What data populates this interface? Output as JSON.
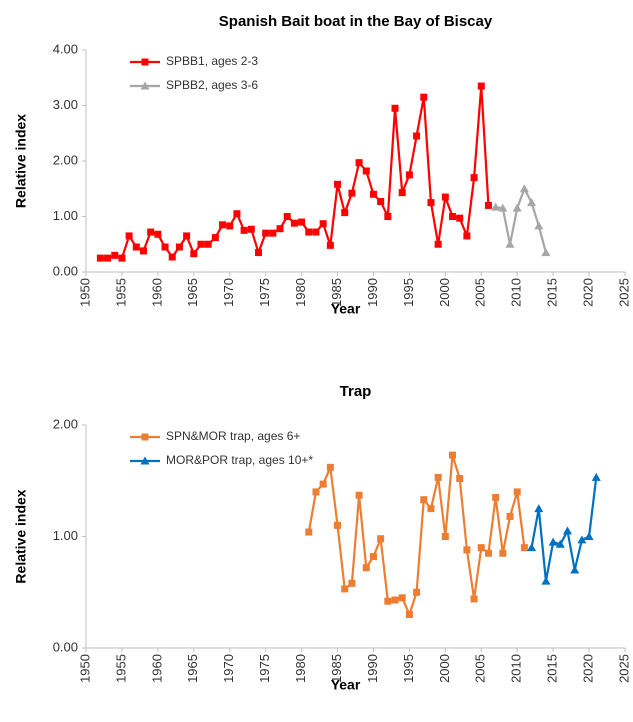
{
  "chart_data": [
    {
      "type": "line",
      "title": "Spanish Bait boat in the Bay of Biscay",
      "xlabel": "Year",
      "ylabel": "Relative index",
      "xlim": [
        1950,
        2025
      ],
      "xticks": [
        1950,
        1955,
        1960,
        1965,
        1970,
        1975,
        1980,
        1985,
        1990,
        1995,
        2000,
        2005,
        2010,
        2015,
        2020,
        2025
      ],
      "ylim": [
        0,
        4
      ],
      "yticks": [
        {
          "value": 0,
          "label": "0.00"
        },
        {
          "value": 1,
          "label": "1.00"
        },
        {
          "value": 2,
          "label": "2.00"
        },
        {
          "value": 3,
          "label": "3.00"
        },
        {
          "value": 4,
          "label": "4.00"
        }
      ],
      "legend": "upper left",
      "series": [
        {
          "name": "SPBB1, ages 2-3",
          "color": "#ff0000",
          "marker": "square",
          "x": [
            1952,
            1953,
            1954,
            1955,
            1956,
            1957,
            1958,
            1959,
            1960,
            1961,
            1962,
            1963,
            1964,
            1965,
            1966,
            1967,
            1968,
            1969,
            1970,
            1971,
            1972,
            1973,
            1974,
            1975,
            1976,
            1977,
            1978,
            1979,
            1980,
            1981,
            1982,
            1983,
            1984,
            1985,
            1986,
            1987,
            1988,
            1989,
            1990,
            1991,
            1992,
            1993,
            1994,
            1995,
            1996,
            1997,
            1998,
            1999,
            2000,
            2001,
            2002,
            2003,
            2004,
            2005,
            2006
          ],
          "values": [
            0.25,
            0.25,
            0.3,
            0.25,
            0.65,
            0.45,
            0.38,
            0.72,
            0.68,
            0.45,
            0.27,
            0.45,
            0.65,
            0.33,
            0.5,
            0.5,
            0.62,
            0.85,
            0.83,
            1.05,
            0.75,
            0.77,
            0.35,
            0.7,
            0.7,
            0.78,
            1.0,
            0.88,
            0.9,
            0.72,
            0.72,
            0.87,
            0.48,
            1.58,
            1.07,
            1.42,
            1.97,
            1.82,
            1.4,
            1.27,
            1.0,
            2.95,
            1.43,
            1.75,
            2.45,
            3.15,
            1.25,
            0.5,
            1.35,
            1.0,
            0.97,
            0.65,
            1.7,
            3.35,
            1.2
          ]
        },
        {
          "name": "SPBB2, ages 3-6",
          "color": "#a6a6a6",
          "marker": "triangle",
          "x": [
            2007,
            2008,
            2009,
            2010,
            2011,
            2012,
            2013,
            2014
          ],
          "values": [
            1.17,
            1.15,
            0.5,
            1.15,
            1.5,
            1.25,
            0.83,
            0.35
          ]
        }
      ]
    },
    {
      "type": "line",
      "title": "Trap",
      "xlabel": "Year",
      "ylabel": "Relative index",
      "xlim": [
        1950,
        2025
      ],
      "xticks": [
        1950,
        1955,
        1960,
        1965,
        1970,
        1975,
        1980,
        1985,
        1990,
        1995,
        2000,
        2005,
        2010,
        2015,
        2020,
        2025
      ],
      "ylim": [
        0,
        2
      ],
      "yticks": [
        {
          "value": 0,
          "label": "0.00"
        },
        {
          "value": 1,
          "label": "1.00"
        },
        {
          "value": 2,
          "label": "2.00"
        }
      ],
      "legend": "upper left",
      "series": [
        {
          "name": "SPN&MOR trap, ages 6+",
          "color": "#ed7d31",
          "marker": "square",
          "x": [
            1981,
            1982,
            1983,
            1984,
            1985,
            1986,
            1987,
            1988,
            1989,
            1990,
            1991,
            1992,
            1993,
            1994,
            1995,
            1996,
            1997,
            1998,
            1999,
            2000,
            2001,
            2002,
            2003,
            2004,
            2005,
            2006,
            2007,
            2008,
            2009,
            2010,
            2011
          ],
          "values": [
            1.04,
            1.4,
            1.47,
            1.62,
            1.1,
            0.53,
            0.58,
            1.37,
            0.72,
            0.82,
            0.98,
            0.42,
            0.43,
            0.45,
            0.3,
            0.5,
            1.33,
            1.25,
            1.53,
            1.0,
            1.73,
            1.52,
            0.88,
            0.44,
            0.9,
            0.85,
            1.35,
            0.85,
            1.18,
            1.4,
            0.9
          ]
        },
        {
          "name": "MOR&POR trap, ages 10+*",
          "color": "#0070c0",
          "marker": "triangle",
          "x": [
            2012,
            2013,
            2014,
            2015,
            2016,
            2017,
            2018,
            2019,
            2020,
            2021
          ],
          "values": [
            0.9,
            1.25,
            0.6,
            0.95,
            0.93,
            1.05,
            0.7,
            0.97,
            1.0,
            1.53
          ]
        }
      ]
    }
  ]
}
